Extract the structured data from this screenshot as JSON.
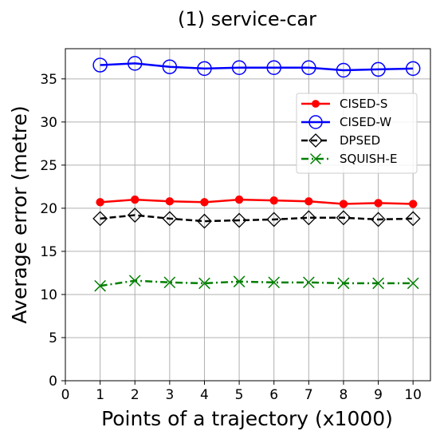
{
  "chart_data": {
    "type": "line",
    "title": "(1) service-car",
    "xlabel": "Points of a trajectory (x1000)",
    "ylabel": "Average error (metre)",
    "xlim": [
      0,
      10.5
    ],
    "ylim": [
      0,
      38.5
    ],
    "xticks": [
      "0",
      "1",
      "2",
      "3",
      "4",
      "5",
      "6",
      "7",
      "8",
      "9",
      "10"
    ],
    "yticks": [
      "0",
      "5",
      "10",
      "15",
      "20",
      "25",
      "30",
      "35"
    ],
    "grid": true,
    "legend_position": "upper-right",
    "x": [
      1,
      2,
      3,
      4,
      5,
      6,
      7,
      8,
      9,
      10
    ],
    "series": [
      {
        "name": "CISED-S",
        "color": "#ff0000",
        "line_style": "solid",
        "marker": "filled-circle",
        "values": [
          20.7,
          21.0,
          20.8,
          20.7,
          21.0,
          20.9,
          20.8,
          20.5,
          20.6,
          20.5
        ]
      },
      {
        "name": "CISED-W",
        "color": "#0000ff",
        "line_style": "solid",
        "marker": "open-circle",
        "values": [
          36.6,
          36.8,
          36.4,
          36.2,
          36.3,
          36.3,
          36.3,
          36.0,
          36.1,
          36.2
        ]
      },
      {
        "name": "DPSED",
        "color": "#000000",
        "line_style": "dashed",
        "marker": "open-diamond",
        "values": [
          18.8,
          19.2,
          18.8,
          18.5,
          18.6,
          18.7,
          18.9,
          18.9,
          18.7,
          18.8
        ]
      },
      {
        "name": "SQUISH-E",
        "color": "#008000",
        "line_style": "dash-dot",
        "marker": "x",
        "values": [
          11.0,
          11.6,
          11.4,
          11.3,
          11.5,
          11.4,
          11.4,
          11.3,
          11.3,
          11.3
        ]
      }
    ]
  }
}
